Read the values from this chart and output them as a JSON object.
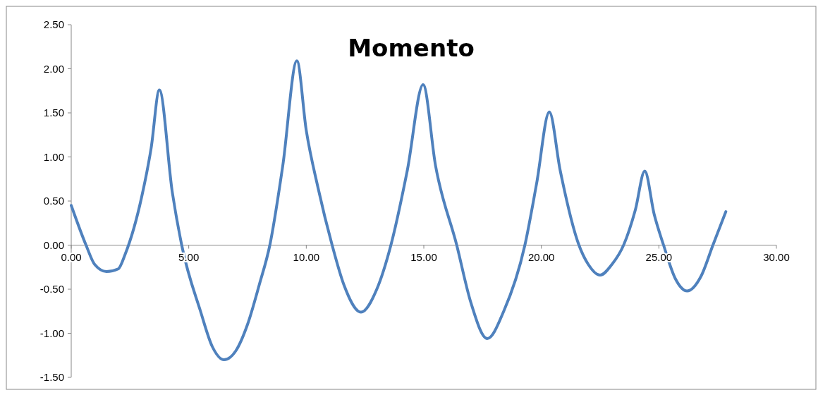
{
  "chart_data": {
    "type": "line",
    "title": "Momento",
    "x": [
      0,
      0.63,
      1.0,
      1.5,
      2.0,
      2.3,
      3.0,
      3.4,
      3.75,
      4.3,
      4.7,
      5.5,
      6.0,
      6.5,
      7.0,
      7.5,
      8.0,
      8.45,
      9.0,
      9.6,
      10.0,
      10.5,
      11.1,
      11.6,
      12.33,
      13.0,
      13.6,
      14.3,
      14.97,
      15.5,
      16.4,
      17.0,
      17.7,
      18.4,
      19.3,
      19.8,
      20.34,
      20.8,
      21.6,
      22.0,
      22.5,
      23.0,
      23.5,
      24.0,
      24.4,
      24.8,
      25.2,
      25.7,
      26.2,
      26.8,
      27.3,
      27.85
    ],
    "series": [
      {
        "color": "#4f81bd",
        "values": [
          0.45,
          0,
          -0.22,
          -0.3,
          -0.27,
          -0.1,
          0.55,
          1.1,
          1.76,
          0.6,
          0,
          -0.75,
          -1.15,
          -1.3,
          -1.2,
          -0.9,
          -0.45,
          0,
          0.9,
          2.09,
          1.3,
          0.65,
          0,
          -0.45,
          -0.76,
          -0.5,
          0,
          0.85,
          1.82,
          0.9,
          0,
          -0.65,
          -1.06,
          -0.75,
          0,
          0.7,
          1.51,
          0.85,
          0,
          -0.22,
          -0.34,
          -0.22,
          0,
          0.4,
          0.84,
          0.35,
          0,
          -0.38,
          -0.52,
          -0.35,
          0,
          0.38
        ]
      }
    ],
    "xlim": [
      0,
      30
    ],
    "xticks": [
      {
        "value": 0,
        "label": "0.00"
      },
      {
        "value": 5,
        "label": "5.00"
      },
      {
        "value": 10,
        "label": "10.00"
      },
      {
        "value": 15,
        "label": "15.00"
      },
      {
        "value": 20,
        "label": "20.00"
      },
      {
        "value": 25,
        "label": "25.00"
      },
      {
        "value": 30,
        "label": "30.00"
      }
    ],
    "ylim": [
      -1.5,
      2.5
    ],
    "yticks": [
      {
        "value": -1.5,
        "label": "-1.50"
      },
      {
        "value": -1,
        "label": "-1.00"
      },
      {
        "value": -0.5,
        "label": "-0.50"
      },
      {
        "value": 0,
        "label": "0.00"
      },
      {
        "value": 0.5,
        "label": "0.50"
      },
      {
        "value": 1,
        "label": "1.00"
      },
      {
        "value": 1.5,
        "label": "1.50"
      },
      {
        "value": 2,
        "label": "2.00"
      },
      {
        "value": 2.5,
        "label": "2.50"
      }
    ],
    "marker": "none",
    "line_style": "solid"
  }
}
